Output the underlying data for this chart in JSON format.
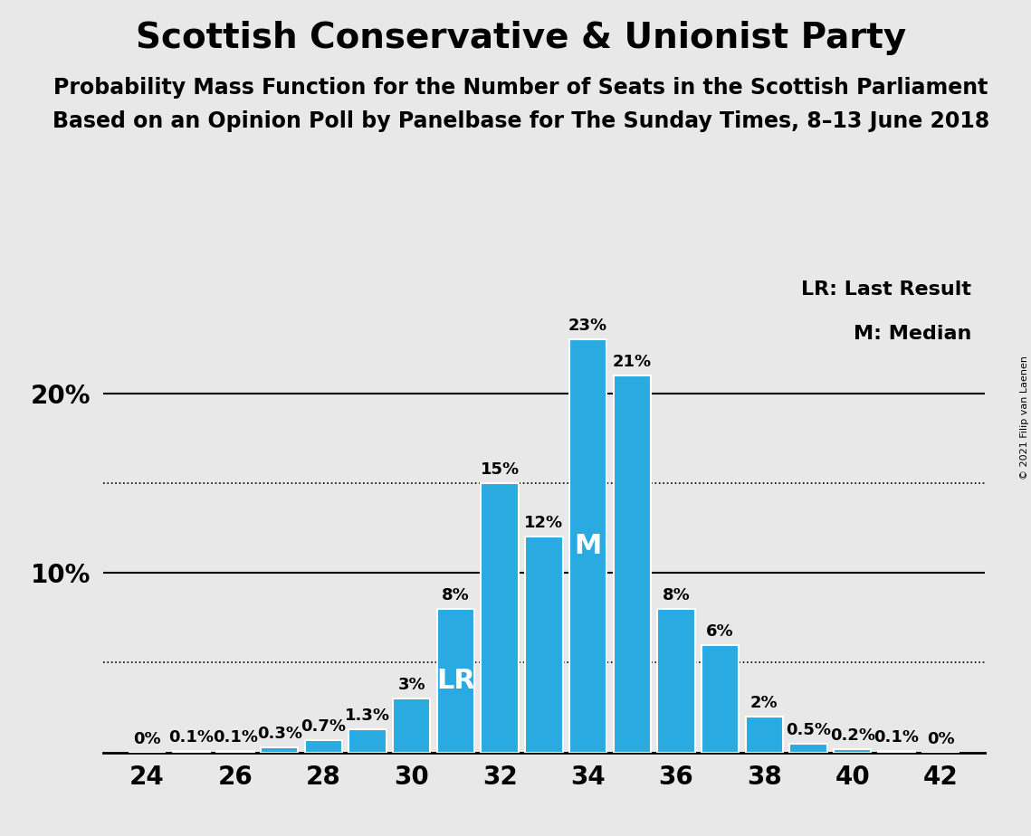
{
  "title": "Scottish Conservative & Unionist Party",
  "subtitle1": "Probability Mass Function for the Number of Seats in the Scottish Parliament",
  "subtitle2": "Based on an Opinion Poll by Panelbase for The Sunday Times, 8–13 June 2018",
  "copyright": "© 2021 Filip van Laenen",
  "seats": [
    24,
    25,
    26,
    27,
    28,
    29,
    30,
    31,
    32,
    33,
    34,
    35,
    36,
    37,
    38,
    39,
    40,
    41,
    42
  ],
  "probabilities": [
    0.0,
    0.1,
    0.1,
    0.3,
    0.7,
    1.3,
    3.0,
    8.0,
    15.0,
    12.0,
    23.0,
    21.0,
    8.0,
    6.0,
    2.0,
    0.5,
    0.2,
    0.1,
    0.0
  ],
  "bar_color": "#29ABE2",
  "background_color": "#E8E8E8",
  "last_result_seat": 31,
  "median_seat": 34,
  "solid_yticks": [
    10,
    20
  ],
  "dotted_yticks": [
    5,
    15
  ],
  "xlim": [
    23.0,
    43.0
  ],
  "ylim": [
    0,
    27
  ],
  "legend_lr": "LR: Last Result",
  "legend_m": "M: Median",
  "label_fontsize": 13,
  "title_fontsize": 28,
  "subtitle_fontsize": 17,
  "tick_fontsize": 20
}
